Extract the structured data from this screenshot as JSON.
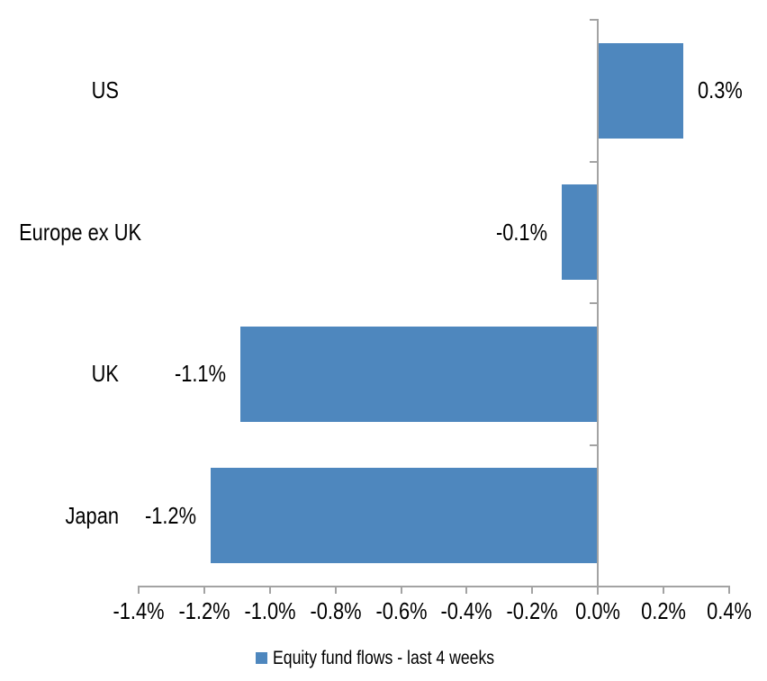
{
  "chart_data": {
    "type": "bar",
    "orientation": "horizontal",
    "title": "",
    "xlabel": "",
    "ylabel": "",
    "categories": [
      "US",
      "Europe ex UK",
      "UK",
      "Japan"
    ],
    "series": [
      {
        "name": "Equity fund flows - last 4 weeks",
        "values": [
          0.3,
          -0.1,
          -1.1,
          -1.2
        ],
        "values_precise": [
          0.26,
          -0.11,
          -1.09,
          -1.18
        ],
        "data_labels": [
          "0.3%",
          "-0.1%",
          "-1.1%",
          "-1.2%"
        ],
        "color": "#4e87be"
      }
    ],
    "x_axis": {
      "range": [
        -1.4,
        0.4
      ],
      "tick_values": [
        -1.4,
        -1.2,
        -1.0,
        -0.8,
        -0.6,
        -0.4,
        -0.2,
        0.0,
        0.2,
        0.4
      ],
      "tick_labels": [
        "-1.4%",
        "-1.2%",
        "-1.0%",
        "-0.8%",
        "-0.6%",
        "-0.4%",
        "-0.2%",
        "0.0%",
        "0.2%",
        "0.4%"
      ],
      "unit": "%"
    },
    "grid": false,
    "legend_position": "bottom",
    "colors": {
      "axis": "#a3a3a3",
      "text": "#000000",
      "background": "#ffffff"
    }
  }
}
